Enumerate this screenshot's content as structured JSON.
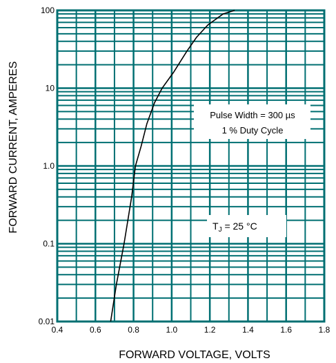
{
  "chart_data": {
    "type": "line",
    "title": "",
    "xlabel": "FORWARD VOLTAGE, VOLTS",
    "ylabel": "FORWARD CURRENT, AMPERES",
    "xlim": [
      0.4,
      1.8
    ],
    "ylim": [
      0.01,
      100
    ],
    "yscale": "log",
    "grid": true,
    "xticks": [
      "0.4",
      "0.6",
      "0.8",
      "1.0",
      "1.2",
      "1.4",
      "1.6",
      "1.8"
    ],
    "yticks": [
      "0.01",
      "0.1",
      "1.0",
      "10",
      "100"
    ],
    "series": [
      {
        "x": [
          0.68,
          0.71,
          0.75,
          0.79,
          0.81,
          0.84,
          0.87,
          0.91,
          0.95,
          1.01,
          1.08,
          1.13,
          1.19,
          1.27,
          1.33
        ],
        "y": [
          0.01,
          0.03,
          0.1,
          0.4,
          1.0,
          1.8,
          3.5,
          6.5,
          10,
          16,
          30,
          45,
          65,
          90,
          100
        ]
      }
    ],
    "color": "#006f72",
    "annotations": {
      "pulse_line1": "Pulse Width = 300 µs",
      "pulse_line2": "1 % Duty Cycle",
      "tj_prefix": "T",
      "tj_subscript": "J",
      "tj_rest": " = 25 °C"
    }
  }
}
